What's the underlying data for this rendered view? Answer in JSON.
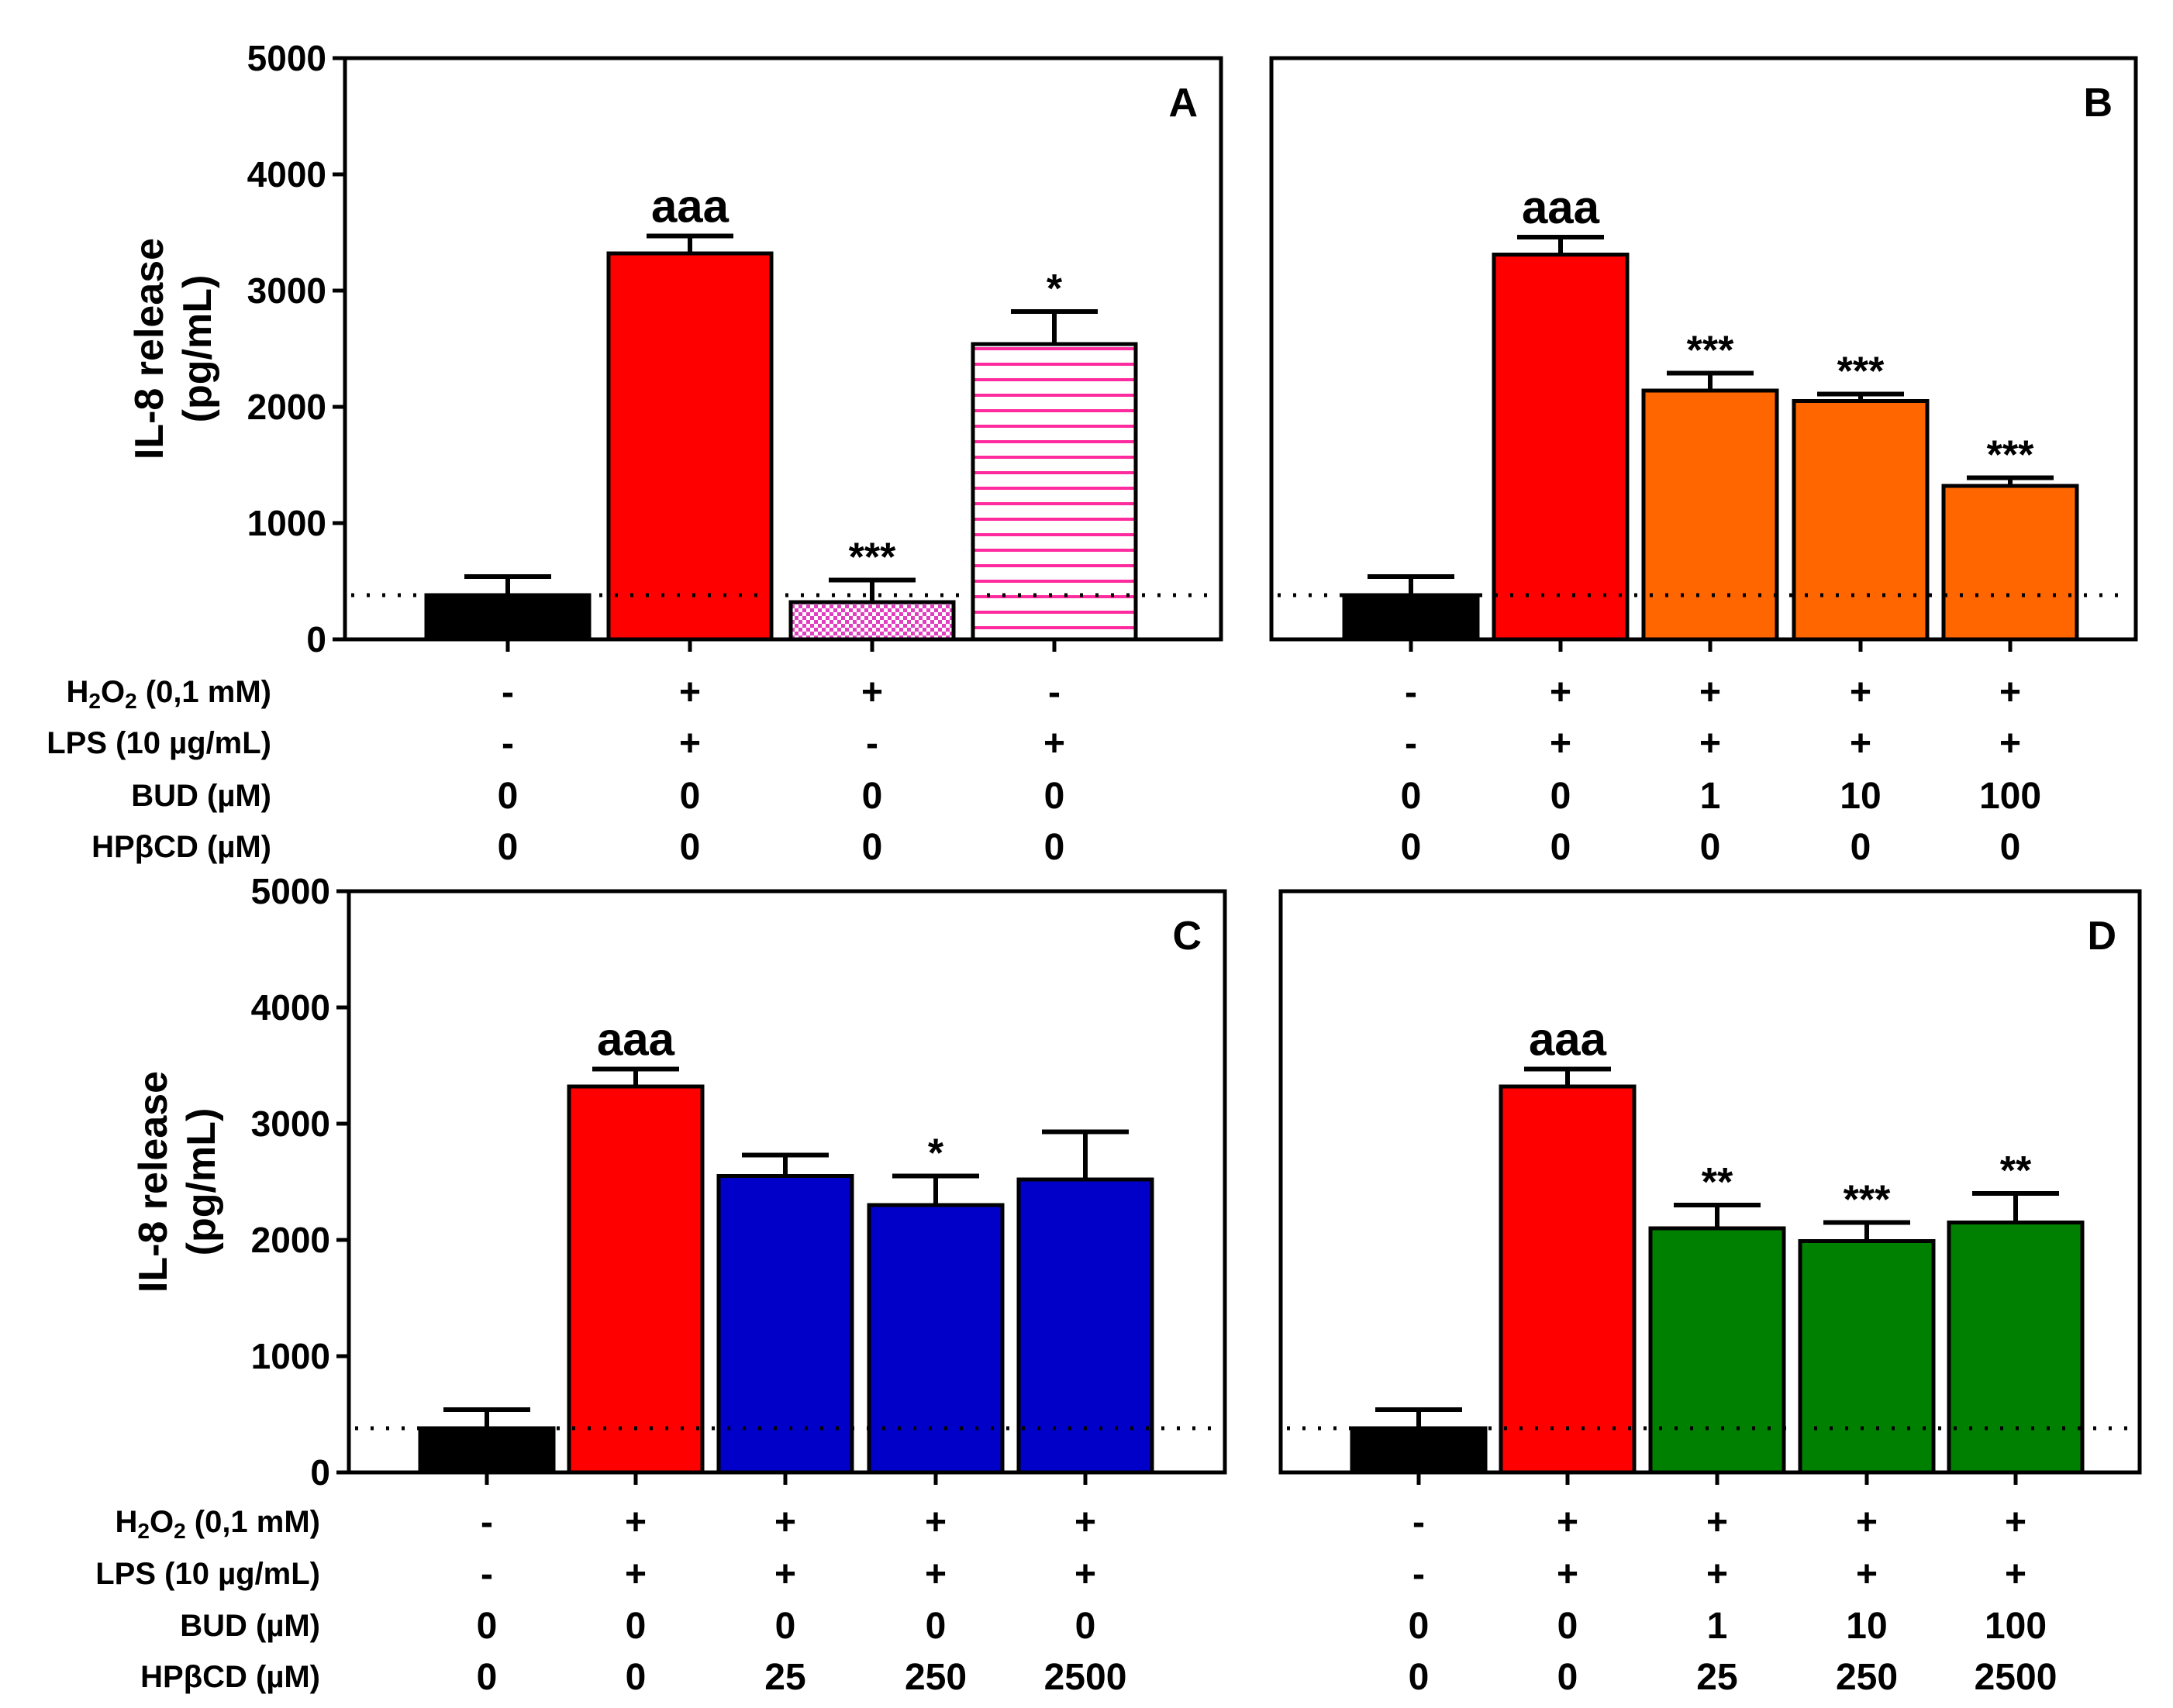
{
  "chart_data": [
    {
      "panel": "A",
      "type": "bar",
      "ylabel_line1": "IL-8 release",
      "ylabel_line2": "(pg/mL)",
      "ylim": [
        0,
        5000
      ],
      "yticks": [
        0,
        1000,
        2000,
        3000,
        4000,
        5000
      ],
      "baseline": 380,
      "values": [
        380,
        3320,
        320,
        2540
      ],
      "errors": [
        160,
        150,
        190,
        280
      ],
      "colors": [
        "#000000",
        "#ff0000",
        "#e040c0",
        "#ffffff"
      ],
      "patterns": [
        "solid",
        "solid",
        "checker",
        "hstripe"
      ],
      "significance": [
        "",
        "aaa",
        "***",
        "*"
      ],
      "conditions": [
        {
          "label": "H2O2 (0,1 mM)",
          "values": [
            "-",
            "+",
            "+",
            "-"
          ]
        },
        {
          "label": "LPS (10 µg/mL)",
          "values": [
            "-",
            "+",
            "-",
            "+"
          ]
        },
        {
          "label": "BUD (µM)",
          "values": [
            "0",
            "0",
            "0",
            "0"
          ]
        },
        {
          "label": "HPβCD (µM)",
          "values": [
            "0",
            "0",
            "0",
            "0"
          ]
        }
      ]
    },
    {
      "panel": "B",
      "type": "bar",
      "ylim": [
        0,
        5000
      ],
      "baseline": 380,
      "values": [
        380,
        3310,
        2140,
        2050,
        1320
      ],
      "errors": [
        160,
        150,
        150,
        60,
        70
      ],
      "colors": [
        "#000000",
        "#ff0000",
        "#ff6600",
        "#ff6600",
        "#ff6600"
      ],
      "patterns": [
        "solid",
        "solid",
        "solid",
        "solid",
        "solid"
      ],
      "significance": [
        "",
        "aaa",
        "***",
        "***",
        "***"
      ],
      "conditions": [
        {
          "label": "H2O2 (0,1 mM)",
          "values": [
            "-",
            "+",
            "+",
            "+",
            "+"
          ]
        },
        {
          "label": "LPS (10 µg/mL)",
          "values": [
            "-",
            "+",
            "+",
            "+",
            "+"
          ]
        },
        {
          "label": "BUD (µM)",
          "values": [
            "0",
            "0",
            "1",
            "10",
            "100"
          ]
        },
        {
          "label": "HPβCD (µM)",
          "values": [
            "0",
            "0",
            "0",
            "0",
            "0"
          ]
        }
      ]
    },
    {
      "panel": "C",
      "type": "bar",
      "ylabel_line1": "IL-8 release",
      "ylabel_line2": "(pg/mL)",
      "ylim": [
        0,
        5000
      ],
      "yticks": [
        0,
        1000,
        2000,
        3000,
        4000,
        5000
      ],
      "baseline": 380,
      "values": [
        380,
        3320,
        2550,
        2300,
        2520
      ],
      "errors": [
        160,
        150,
        180,
        250,
        410
      ],
      "colors": [
        "#000000",
        "#ff0000",
        "#0000c8",
        "#0000c8",
        "#0000c8"
      ],
      "patterns": [
        "solid",
        "solid",
        "solid",
        "solid",
        "solid"
      ],
      "significance": [
        "",
        "aaa",
        "",
        "*",
        ""
      ],
      "conditions": [
        {
          "label": "H2O2 (0,1 mM)",
          "values": [
            "-",
            "+",
            "+",
            "+",
            "+"
          ]
        },
        {
          "label": "LPS (10 µg/mL)",
          "values": [
            "-",
            "+",
            "+",
            "+",
            "+"
          ]
        },
        {
          "label": "BUD (µM)",
          "values": [
            "0",
            "0",
            "0",
            "0",
            "0"
          ]
        },
        {
          "label": "HPβCD (µM)",
          "values": [
            "0",
            "0",
            "25",
            "250",
            "2500"
          ]
        }
      ]
    },
    {
      "panel": "D",
      "type": "bar",
      "ylim": [
        0,
        5000
      ],
      "baseline": 380,
      "values": [
        380,
        3320,
        2100,
        1990,
        2150
      ],
      "errors": [
        160,
        150,
        200,
        160,
        250
      ],
      "colors": [
        "#000000",
        "#ff0000",
        "#008000",
        "#008000",
        "#008000"
      ],
      "patterns": [
        "solid",
        "solid",
        "solid",
        "solid",
        "solid"
      ],
      "significance": [
        "",
        "aaa",
        "**",
        "***",
        "**"
      ],
      "conditions": [
        {
          "label": "H2O2 (0,1 mM)",
          "values": [
            "-",
            "+",
            "+",
            "+",
            "+"
          ]
        },
        {
          "label": "LPS (10 µg/mL)",
          "values": [
            "-",
            "+",
            "+",
            "+",
            "+"
          ]
        },
        {
          "label": "BUD (µM)",
          "values": [
            "0",
            "0",
            "1",
            "10",
            "100"
          ]
        },
        {
          "label": "HPβCD (µM)",
          "values": [
            "0",
            "0",
            "25",
            "250",
            "2500"
          ]
        }
      ]
    }
  ]
}
